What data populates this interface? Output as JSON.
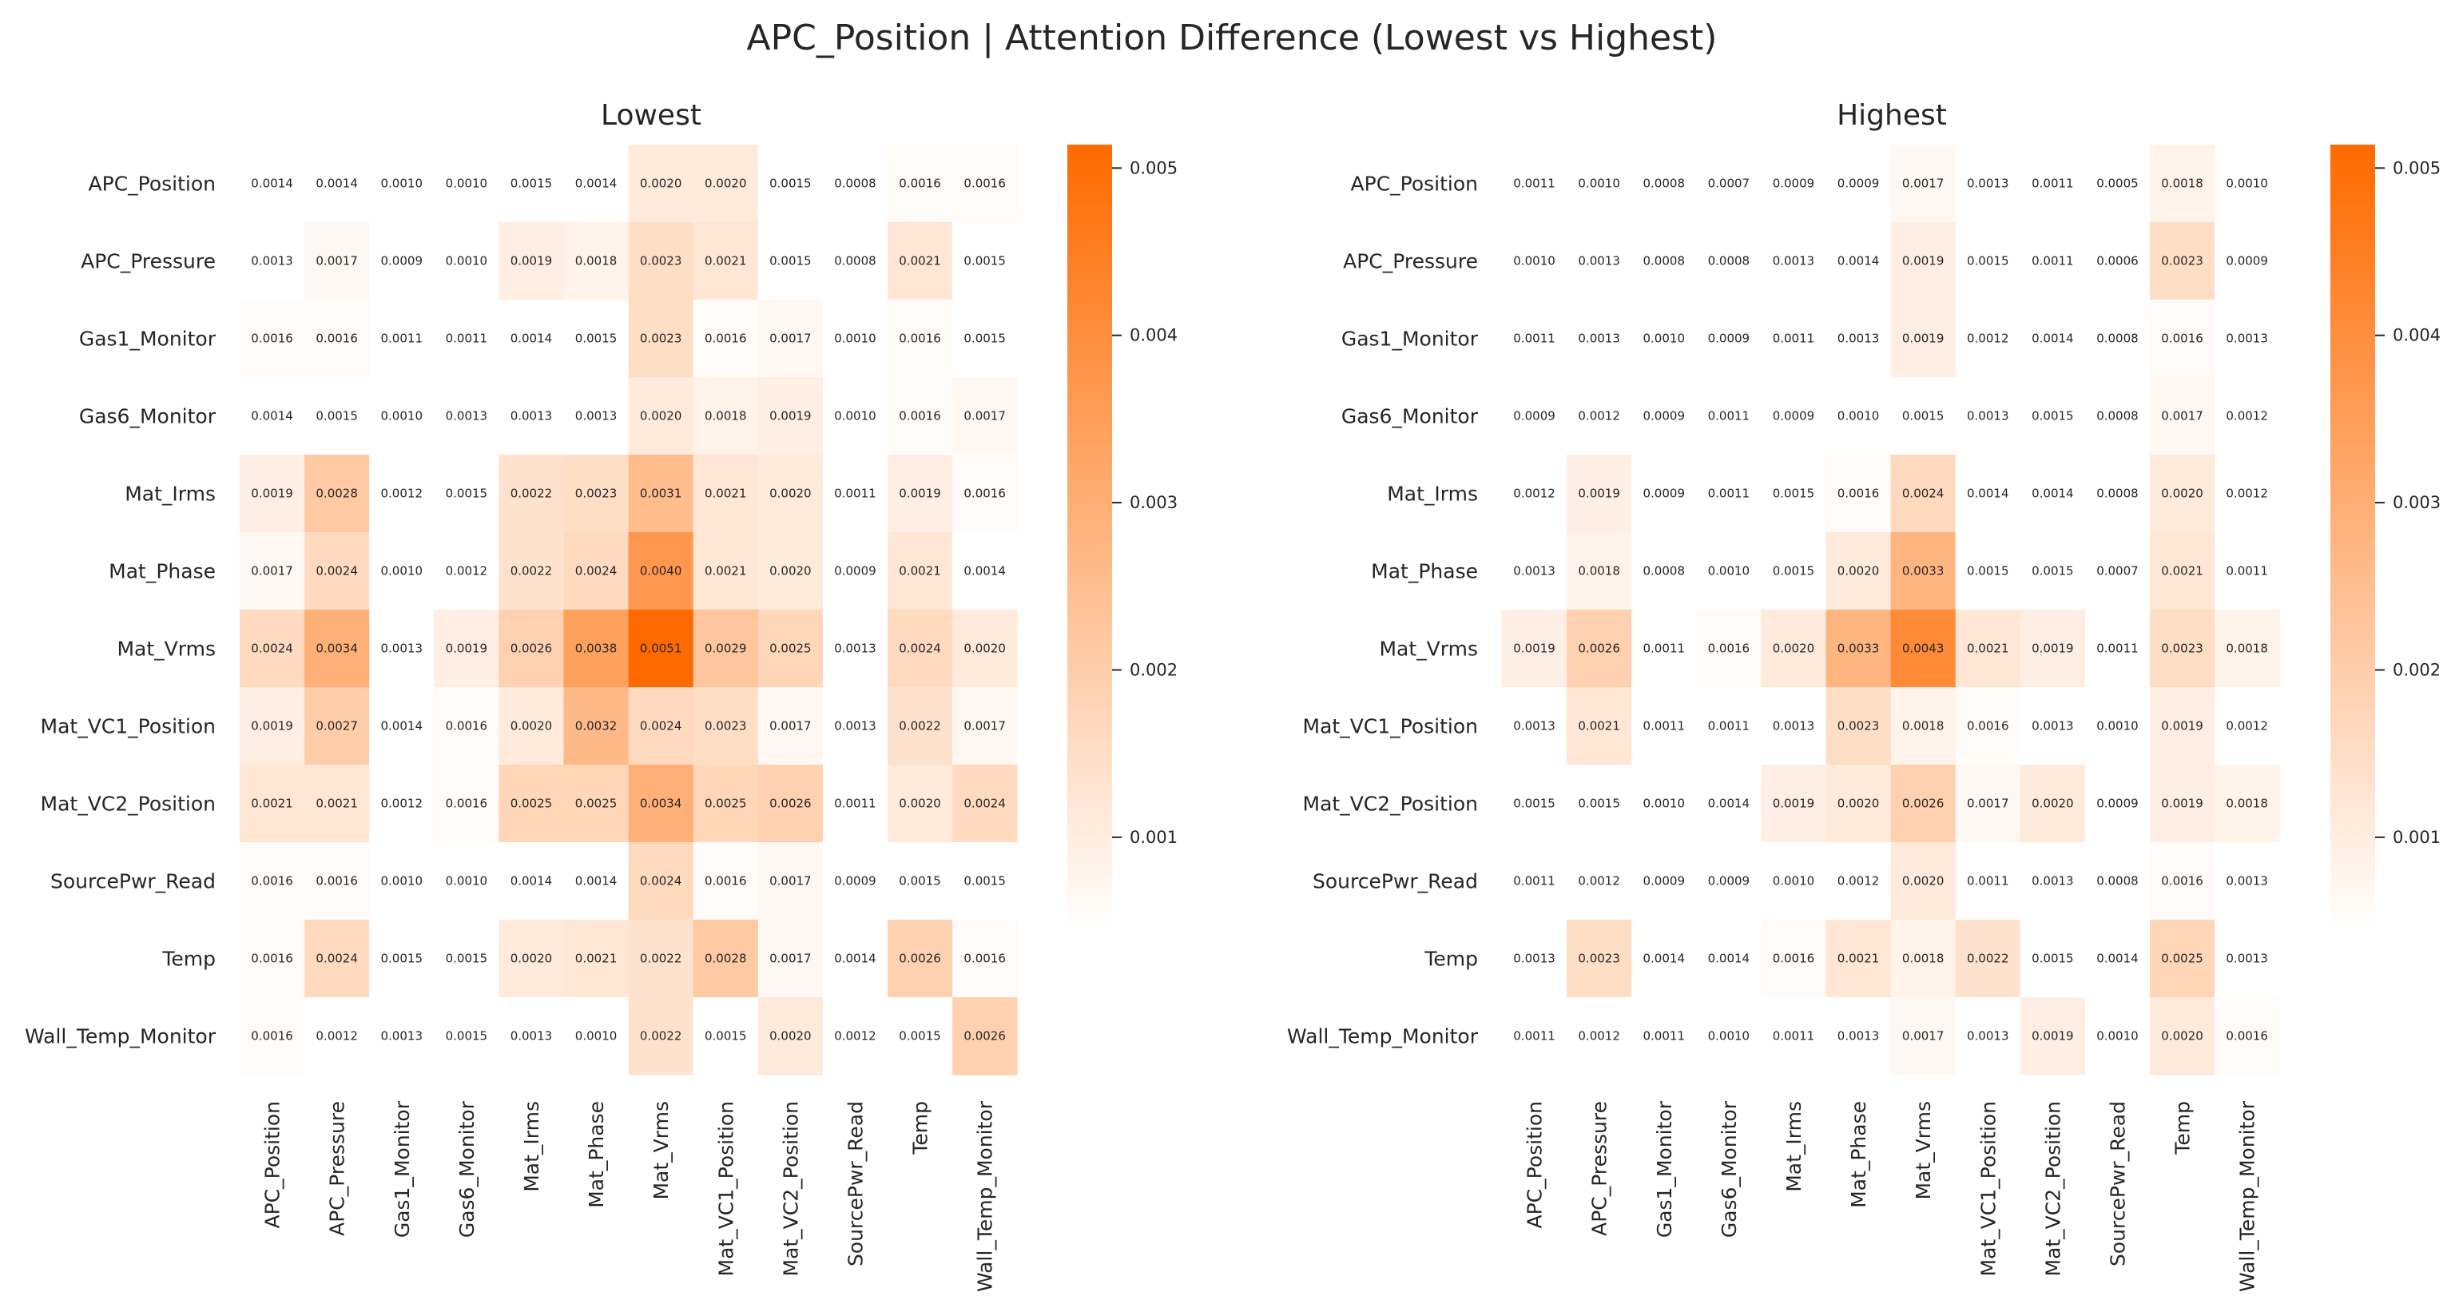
{
  "figure": {
    "title": "APC_Position | Attention Difference (Lowest vs Highest)"
  },
  "chart_data": [
    {
      "type": "heatmap",
      "title": "Lowest",
      "rows": [
        "APC_Position",
        "APC_Pressure",
        "Gas1_Monitor",
        "Gas6_Monitor",
        "Mat_Irms",
        "Mat_Phase",
        "Mat_Vrms",
        "Mat_VC1_Position",
        "Mat_VC2_Position",
        "SourcePwr_Read",
        "Temp",
        "Wall_Temp_Monitor"
      ],
      "columns": [
        "APC_Position",
        "APC_Pressure",
        "Gas1_Monitor",
        "Gas6_Monitor",
        "Mat_Irms",
        "Mat_Phase",
        "Mat_Vrms",
        "Mat_VC1_Position",
        "Mat_VC2_Position",
        "SourcePwr_Read",
        "Temp",
        "Wall_Temp_Monitor"
      ],
      "values": [
        [
          0.0014,
          0.0014,
          0.001,
          0.001,
          0.0015,
          0.0014,
          0.002,
          0.002,
          0.0015,
          0.0008,
          0.0016,
          0.0016
        ],
        [
          0.0013,
          0.0017,
          0.0009,
          0.001,
          0.0019,
          0.0018,
          0.0023,
          0.0021,
          0.0015,
          0.0008,
          0.0021,
          0.0015
        ],
        [
          0.0016,
          0.0016,
          0.0011,
          0.0011,
          0.0014,
          0.0015,
          0.0023,
          0.0016,
          0.0017,
          0.001,
          0.0016,
          0.0015
        ],
        [
          0.0014,
          0.0015,
          0.001,
          0.0013,
          0.0013,
          0.0013,
          0.002,
          0.0018,
          0.0019,
          0.001,
          0.0016,
          0.0017
        ],
        [
          0.0019,
          0.0028,
          0.0012,
          0.0015,
          0.0022,
          0.0023,
          0.0031,
          0.0021,
          0.002,
          0.0011,
          0.0019,
          0.0016
        ],
        [
          0.0017,
          0.0024,
          0.001,
          0.0012,
          0.0022,
          0.0024,
          0.004,
          0.0021,
          0.002,
          0.0009,
          0.0021,
          0.0014
        ],
        [
          0.0024,
          0.0034,
          0.0013,
          0.0019,
          0.0026,
          0.0038,
          0.0051,
          0.0029,
          0.0025,
          0.0013,
          0.0024,
          0.002
        ],
        [
          0.0019,
          0.0027,
          0.0014,
          0.0016,
          0.002,
          0.0032,
          0.0024,
          0.0023,
          0.0017,
          0.0013,
          0.0022,
          0.0017
        ],
        [
          0.0021,
          0.0021,
          0.0012,
          0.0016,
          0.0025,
          0.0025,
          0.0034,
          0.0025,
          0.0026,
          0.0011,
          0.002,
          0.0024
        ],
        [
          0.0016,
          0.0016,
          0.001,
          0.001,
          0.0014,
          0.0014,
          0.0024,
          0.0016,
          0.0017,
          0.0009,
          0.0015,
          0.0015
        ],
        [
          0.0016,
          0.0024,
          0.0015,
          0.0015,
          0.002,
          0.0021,
          0.0022,
          0.0028,
          0.0017,
          0.0014,
          0.0026,
          0.0016
        ],
        [
          0.0016,
          0.0012,
          0.0013,
          0.0015,
          0.0013,
          0.001,
          0.0022,
          0.0015,
          0.002,
          0.0012,
          0.0015,
          0.0026
        ]
      ],
      "colorbar": {
        "ticks": [
          0.001,
          0.002,
          0.003,
          0.004,
          0.005
        ],
        "tick_labels": [
          "0.001",
          "0.002",
          "0.003",
          "0.004",
          "0.005"
        ]
      }
    },
    {
      "type": "heatmap",
      "title": "Highest",
      "rows": [
        "APC_Position",
        "APC_Pressure",
        "Gas1_Monitor",
        "Gas6_Monitor",
        "Mat_Irms",
        "Mat_Phase",
        "Mat_Vrms",
        "Mat_VC1_Position",
        "Mat_VC2_Position",
        "SourcePwr_Read",
        "Temp",
        "Wall_Temp_Monitor"
      ],
      "columns": [
        "APC_Position",
        "APC_Pressure",
        "Gas1_Monitor",
        "Gas6_Monitor",
        "Mat_Irms",
        "Mat_Phase",
        "Mat_Vrms",
        "Mat_VC1_Position",
        "Mat_VC2_Position",
        "SourcePwr_Read",
        "Temp",
        "Wall_Temp_Monitor"
      ],
      "values": [
        [
          0.0011,
          0.001,
          0.0008,
          0.0007,
          0.0009,
          0.0009,
          0.0017,
          0.0013,
          0.0011,
          0.0005,
          0.0018,
          0.001
        ],
        [
          0.001,
          0.0013,
          0.0008,
          0.0008,
          0.0013,
          0.0014,
          0.0019,
          0.0015,
          0.0011,
          0.0006,
          0.0023,
          0.0009
        ],
        [
          0.0011,
          0.0013,
          0.001,
          0.0009,
          0.0011,
          0.0013,
          0.0019,
          0.0012,
          0.0014,
          0.0008,
          0.0016,
          0.0013
        ],
        [
          0.0009,
          0.0012,
          0.0009,
          0.0011,
          0.0009,
          0.001,
          0.0015,
          0.0013,
          0.0015,
          0.0008,
          0.0017,
          0.0012
        ],
        [
          0.0012,
          0.0019,
          0.0009,
          0.0011,
          0.0015,
          0.0016,
          0.0024,
          0.0014,
          0.0014,
          0.0008,
          0.002,
          0.0012
        ],
        [
          0.0013,
          0.0018,
          0.0008,
          0.001,
          0.0015,
          0.002,
          0.0033,
          0.0015,
          0.0015,
          0.0007,
          0.0021,
          0.0011
        ],
        [
          0.0019,
          0.0026,
          0.0011,
          0.0016,
          0.002,
          0.0033,
          0.0043,
          0.0021,
          0.0019,
          0.0011,
          0.0023,
          0.0018
        ],
        [
          0.0013,
          0.0021,
          0.0011,
          0.0011,
          0.0013,
          0.0023,
          0.0018,
          0.0016,
          0.0013,
          0.001,
          0.0019,
          0.0012
        ],
        [
          0.0015,
          0.0015,
          0.001,
          0.0014,
          0.0019,
          0.002,
          0.0026,
          0.0017,
          0.002,
          0.0009,
          0.0019,
          0.0018
        ],
        [
          0.0011,
          0.0012,
          0.0009,
          0.0009,
          0.001,
          0.0012,
          0.002,
          0.0011,
          0.0013,
          0.0008,
          0.0016,
          0.0013
        ],
        [
          0.0013,
          0.0023,
          0.0014,
          0.0014,
          0.0016,
          0.0021,
          0.0018,
          0.0022,
          0.0015,
          0.0014,
          0.0025,
          0.0013
        ],
        [
          0.0011,
          0.0012,
          0.0011,
          0.001,
          0.0011,
          0.0013,
          0.0017,
          0.0013,
          0.0019,
          0.001,
          0.002,
          0.0016
        ]
      ],
      "colorbar": {
        "ticks": [
          0.001,
          0.002,
          0.003,
          0.004,
          0.005
        ],
        "tick_labels": [
          "0.001",
          "0.002",
          "0.003",
          "0.004",
          "0.005"
        ]
      }
    }
  ],
  "colors": {
    "low": "#ffffff",
    "high": "#ff6a00",
    "text": "#262626"
  },
  "color_range": [
    0.0015,
    0.0051
  ]
}
